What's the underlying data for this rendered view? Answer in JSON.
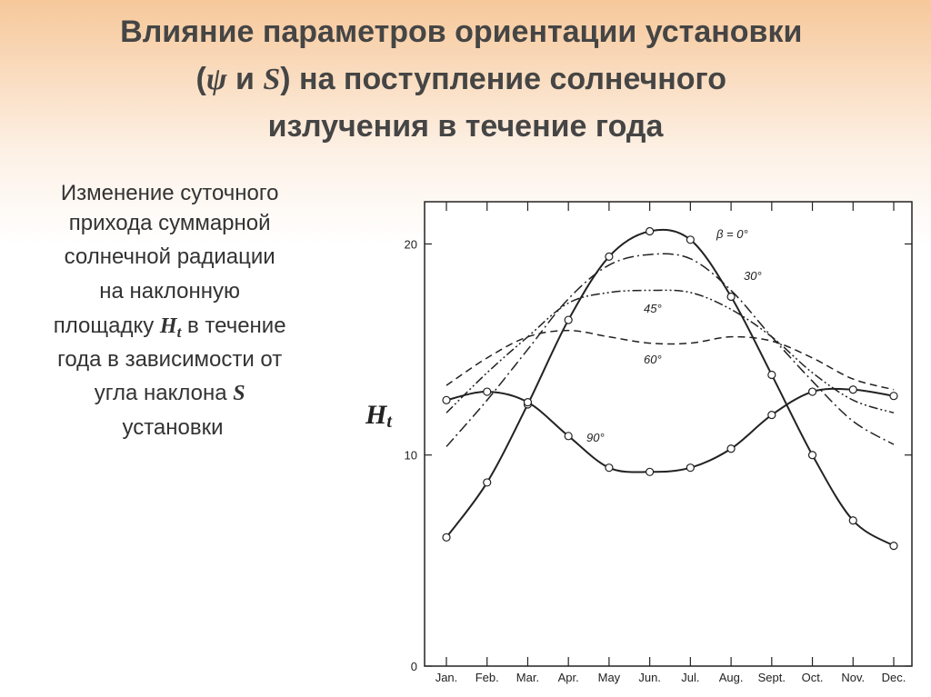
{
  "slide": {
    "title": [
      "Влияние параметров ориентации установки",
      "(",
      "ψ",
      " и ",
      "S",
      ") на поступление солнечного",
      "излучения в течение года"
    ],
    "caption": [
      "Изменение суточного",
      "прихода суммарной",
      "солнечной радиации",
      "на наклонную",
      "площадку ",
      "H",
      "t",
      " в течение",
      "года в зависимости от",
      "угла наклона ",
      "S",
      "установки"
    ]
  },
  "chart_data": {
    "type": "line",
    "y_label": "H",
    "y_label_sub": "t",
    "categories": [
      "Jan.",
      "Feb.",
      "Mar.",
      "Apr.",
      "May",
      "Jun.",
      "Jul.",
      "Aug.",
      "Sept.",
      "Oct.",
      "Nov.",
      "Dec."
    ],
    "ylim": [
      0,
      22
    ],
    "yticks": [
      0,
      10,
      20
    ],
    "series": [
      {
        "name": "β = 0°",
        "color": "#222222",
        "line_style": "solid",
        "markers": true,
        "values": [
          6.1,
          8.7,
          12.4,
          16.4,
          19.4,
          20.6,
          20.2,
          17.5,
          13.8,
          10.0,
          6.9,
          5.7
        ]
      },
      {
        "name": "30°",
        "color": "#222222",
        "line_style": "dashdot",
        "markers": false,
        "values": [
          10.4,
          12.6,
          15.0,
          17.4,
          19.0,
          19.5,
          19.3,
          17.8,
          15.6,
          13.5,
          11.6,
          10.5
        ]
      },
      {
        "name": "45°",
        "color": "#222222",
        "line_style": "dashdotdot",
        "markers": false,
        "values": [
          12.0,
          13.9,
          15.6,
          17.2,
          17.7,
          17.8,
          17.7,
          16.9,
          15.6,
          13.9,
          12.6,
          12.0
        ]
      },
      {
        "name": "60°",
        "color": "#222222",
        "line_style": "dashed",
        "markers": false,
        "values": [
          13.3,
          14.6,
          15.6,
          15.9,
          15.6,
          15.3,
          15.3,
          15.6,
          15.4,
          14.6,
          13.6,
          13.1
        ]
      },
      {
        "name": "90°",
        "color": "#222222",
        "line_style": "solid",
        "markers": true,
        "values": [
          12.6,
          13.0,
          12.5,
          10.9,
          9.4,
          9.2,
          9.4,
          10.3,
          11.9,
          13.0,
          13.1,
          12.8
        ]
      }
    ]
  }
}
